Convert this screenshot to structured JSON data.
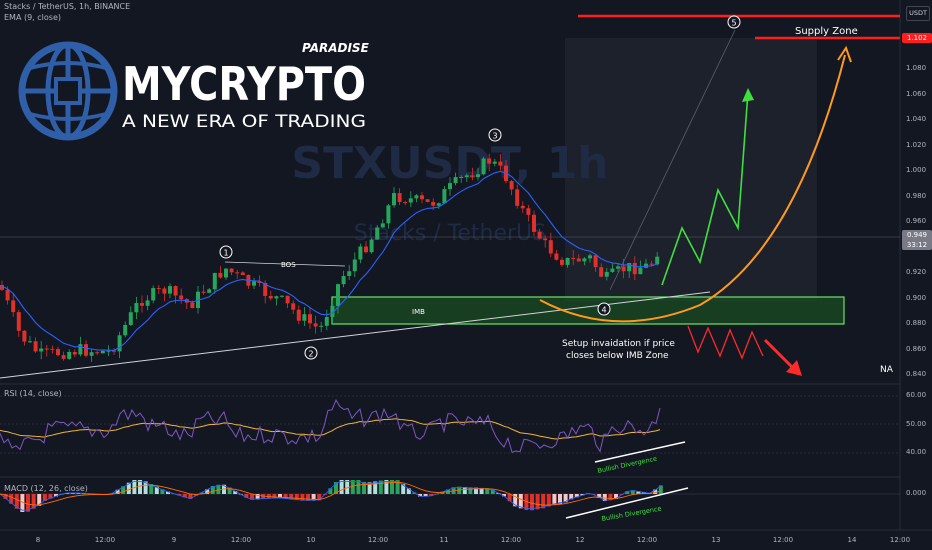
{
  "header": {
    "title": "Stacks / TetherUS, 1h, BINANCE",
    "ema_label": "EMA (9, close)"
  },
  "watermark": {
    "symbol": "STXUSDT, 1h",
    "name": "Stacks / TetherUS"
  },
  "logo": {
    "top": "PARADISE",
    "brand": "MYCRYPTO",
    "tagline": "A NEW ERA OF TRADING"
  },
  "annotations": {
    "supply_zone": "Supply Zone",
    "bos": "BOS",
    "imb": "IMB",
    "invalidation": [
      "Setup invaidation if price",
      "closes below IMB Zone"
    ],
    "na": "NA",
    "bullish_divergence": "Bullish Divergence",
    "waves": [
      "1",
      "2",
      "3",
      "4",
      "5"
    ]
  },
  "price_axis": {
    "currency": "USDT",
    "ticks": [
      "1.080",
      "1.060",
      "1.040",
      "1.020",
      "1.000",
      "0.980",
      "0.960",
      "0.940",
      "0.920",
      "0.900",
      "0.880",
      "0.860",
      "0.840"
    ],
    "supply_price": "1.102",
    "current_price": "0.949",
    "countdown": "33:12"
  },
  "rsi": {
    "label": "RSI (14, close)",
    "ticks": [
      "60.00",
      "50.00",
      "40.00"
    ]
  },
  "macd": {
    "label": "MACD (12, 26, close)",
    "ticks": [
      "0.000"
    ]
  },
  "time_axis": [
    "8",
    "12:00",
    "9",
    "12:00",
    "10",
    "12:00",
    "11",
    "12:00",
    "12",
    "12:00",
    "13",
    "12:00",
    "14",
    "12:00"
  ],
  "colors": {
    "bg": "#131722",
    "up": "#26a65b",
    "down": "#e0302a",
    "ema": "#2962ff",
    "rsi": "#7e57c2",
    "rsi_ma": "#f0b33b",
    "zone": "#4caf50",
    "projection": "#ff9a1f",
    "supply": "#ff1e1e"
  }
}
